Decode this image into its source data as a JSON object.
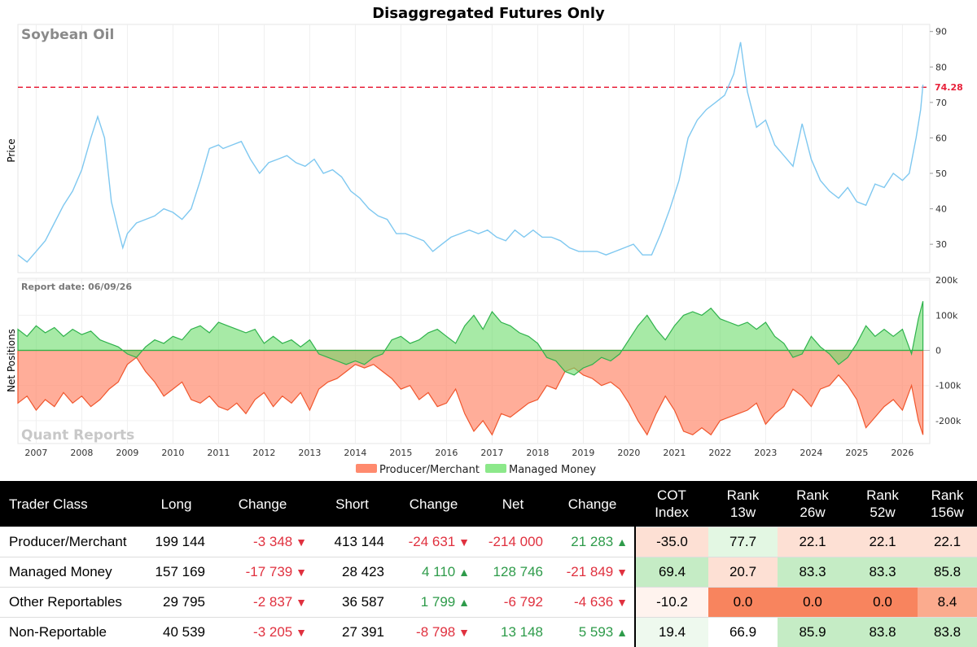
{
  "chart_data": [
    {
      "type": "line",
      "title": "Disaggregated Futures Only",
      "subtitle": "Soybean Oil",
      "ylabel": "Price",
      "ylim": [
        22,
        92
      ],
      "yticks": [
        30,
        40,
        50,
        60,
        70,
        80,
        90
      ],
      "xlim": [
        2006.6,
        2026.6
      ],
      "reference_line": {
        "value": 74.28,
        "label": "74.28",
        "color": "#e8213a",
        "style": "dashed"
      },
      "series": [
        {
          "color": "#7fc8f0",
          "x": [
            2006.6,
            2006.8,
            2007.0,
            2007.2,
            2007.4,
            2007.6,
            2007.8,
            2008.0,
            2008.2,
            2008.35,
            2008.5,
            2008.65,
            2008.8,
            2008.9,
            2009.0,
            2009.2,
            2009.4,
            2009.6,
            2009.8,
            2010.0,
            2010.2,
            2010.4,
            2010.6,
            2010.8,
            2011.0,
            2011.1,
            2011.3,
            2011.5,
            2011.7,
            2011.9,
            2012.1,
            2012.3,
            2012.5,
            2012.7,
            2012.9,
            2013.1,
            2013.3,
            2013.5,
            2013.7,
            2013.9,
            2014.1,
            2014.3,
            2014.5,
            2014.7,
            2014.9,
            2015.1,
            2015.3,
            2015.5,
            2015.7,
            2015.9,
            2016.1,
            2016.3,
            2016.5,
            2016.7,
            2016.9,
            2017.1,
            2017.3,
            2017.5,
            2017.7,
            2017.9,
            2018.1,
            2018.3,
            2018.5,
            2018.7,
            2018.9,
            2019.1,
            2019.3,
            2019.5,
            2019.7,
            2019.9,
            2020.1,
            2020.3,
            2020.5,
            2020.7,
            2020.9,
            2021.1,
            2021.3,
            2021.5,
            2021.7,
            2021.9,
            2022.1,
            2022.3,
            2022.45,
            2022.6,
            2022.8,
            2023.0,
            2023.2,
            2023.4,
            2023.6,
            2023.8,
            2024.0,
            2024.2,
            2024.4,
            2024.6,
            2024.8,
            2025.0,
            2025.2,
            2025.4,
            2025.6,
            2025.8,
            2026.0,
            2026.15,
            2026.3,
            2026.4,
            2026.45
          ],
          "values": [
            27,
            25,
            28,
            31,
            36,
            41,
            45,
            51,
            60,
            66,
            60,
            42,
            34,
            29,
            33,
            36,
            37,
            38,
            40,
            39,
            37,
            40,
            48,
            57,
            58,
            57,
            58,
            59,
            54,
            50,
            53,
            54,
            55,
            53,
            52,
            54,
            50,
            51,
            49,
            45,
            43,
            40,
            38,
            37,
            33,
            33,
            32,
            31,
            28,
            30,
            32,
            33,
            34,
            33,
            34,
            32,
            31,
            34,
            32,
            34,
            32,
            32,
            31,
            29,
            28,
            28,
            28,
            27,
            28,
            29,
            30,
            27,
            27,
            33,
            40,
            48,
            60,
            65,
            68,
            70,
            72,
            78,
            87,
            73,
            63,
            65,
            58,
            55,
            52,
            64,
            54,
            48,
            45,
            43,
            46,
            42,
            41,
            47,
            46,
            50,
            48,
            50,
            60,
            68,
            75
          ]
        }
      ]
    },
    {
      "type": "area",
      "ylabel": "Net Positions",
      "ylim": [
        -265000,
        205000
      ],
      "yticks": [
        -200000,
        -100000,
        0,
        100000,
        200000
      ],
      "ytick_labels": [
        "-200k",
        "-100k",
        "0",
        "100k",
        "200k"
      ],
      "xlim": [
        2006.6,
        2026.6
      ],
      "annotation": "Report date: 06/09/26",
      "watermark": "Quant Reports",
      "x_tick_labels": [
        "2007",
        "2008",
        "2009",
        "2010",
        "2011",
        "2012",
        "2013",
        "2014",
        "2015",
        "2016",
        "2017",
        "2018",
        "2019",
        "2020",
        "2021",
        "2022",
        "2023",
        "2024",
        "2025",
        "2026"
      ],
      "x_tick_values": [
        2007,
        2008,
        2009,
        2010,
        2011,
        2012,
        2013,
        2014,
        2015,
        2016,
        2017,
        2018,
        2019,
        2020,
        2021,
        2022,
        2023,
        2024,
        2025,
        2026
      ],
      "legend_position": "bottom",
      "series": [
        {
          "name": "Producer/Merchant",
          "color": "#ff8a6e",
          "line_color": "#f0562d",
          "x": [
            2006.6,
            2006.8,
            2007.0,
            2007.2,
            2007.4,
            2007.6,
            2007.8,
            2008.0,
            2008.2,
            2008.4,
            2008.6,
            2008.8,
            2009.0,
            2009.2,
            2009.4,
            2009.6,
            2009.8,
            2010.0,
            2010.2,
            2010.4,
            2010.6,
            2010.8,
            2011.0,
            2011.2,
            2011.4,
            2011.6,
            2011.8,
            2012.0,
            2012.2,
            2012.4,
            2012.6,
            2012.8,
            2013.0,
            2013.2,
            2013.4,
            2013.6,
            2013.8,
            2014.0,
            2014.2,
            2014.4,
            2014.6,
            2014.8,
            2015.0,
            2015.2,
            2015.4,
            2015.6,
            2015.8,
            2016.0,
            2016.2,
            2016.4,
            2016.6,
            2016.8,
            2017.0,
            2017.2,
            2017.4,
            2017.6,
            2017.8,
            2018.0,
            2018.2,
            2018.4,
            2018.6,
            2018.8,
            2019.0,
            2019.2,
            2019.4,
            2019.6,
            2019.8,
            2020.0,
            2020.2,
            2020.4,
            2020.6,
            2020.8,
            2021.0,
            2021.2,
            2021.4,
            2021.6,
            2021.8,
            2022.0,
            2022.2,
            2022.4,
            2022.6,
            2022.8,
            2023.0,
            2023.2,
            2023.4,
            2023.6,
            2023.8,
            2024.0,
            2024.2,
            2024.4,
            2024.6,
            2024.8,
            2025.0,
            2025.2,
            2025.4,
            2025.6,
            2025.8,
            2026.0,
            2026.2,
            2026.35,
            2026.45
          ],
          "values": [
            -150000,
            -130000,
            -170000,
            -140000,
            -160000,
            -120000,
            -150000,
            -130000,
            -160000,
            -140000,
            -110000,
            -90000,
            -40000,
            -20000,
            -60000,
            -90000,
            -130000,
            -110000,
            -90000,
            -140000,
            -150000,
            -130000,
            -160000,
            -170000,
            -150000,
            -180000,
            -140000,
            -120000,
            -160000,
            -130000,
            -150000,
            -120000,
            -170000,
            -110000,
            -90000,
            -80000,
            -60000,
            -40000,
            -50000,
            -40000,
            -60000,
            -80000,
            -110000,
            -100000,
            -140000,
            -120000,
            -160000,
            -150000,
            -110000,
            -180000,
            -230000,
            -200000,
            -240000,
            -180000,
            -190000,
            -170000,
            -150000,
            -140000,
            -100000,
            -110000,
            -60000,
            -50000,
            -70000,
            -80000,
            -100000,
            -90000,
            -110000,
            -150000,
            -200000,
            -240000,
            -180000,
            -130000,
            -170000,
            -230000,
            -240000,
            -220000,
            -240000,
            -200000,
            -190000,
            -180000,
            -170000,
            -150000,
            -210000,
            -180000,
            -160000,
            -110000,
            -130000,
            -160000,
            -110000,
            -100000,
            -70000,
            -100000,
            -140000,
            -220000,
            -190000,
            -160000,
            -140000,
            -170000,
            -100000,
            -200000,
            -240000
          ]
        },
        {
          "name": "Managed Money",
          "color": "#8ce88a",
          "line_color": "#2fb24c",
          "x": [
            2006.6,
            2006.8,
            2007.0,
            2007.2,
            2007.4,
            2007.6,
            2007.8,
            2008.0,
            2008.2,
            2008.4,
            2008.6,
            2008.8,
            2009.0,
            2009.2,
            2009.4,
            2009.6,
            2009.8,
            2010.0,
            2010.2,
            2010.4,
            2010.6,
            2010.8,
            2011.0,
            2011.2,
            2011.4,
            2011.6,
            2011.8,
            2012.0,
            2012.2,
            2012.4,
            2012.6,
            2012.8,
            2013.0,
            2013.2,
            2013.4,
            2013.6,
            2013.8,
            2014.0,
            2014.2,
            2014.4,
            2014.6,
            2014.8,
            2015.0,
            2015.2,
            2015.4,
            2015.6,
            2015.8,
            2016.0,
            2016.2,
            2016.4,
            2016.6,
            2016.8,
            2017.0,
            2017.2,
            2017.4,
            2017.6,
            2017.8,
            2018.0,
            2018.2,
            2018.4,
            2018.6,
            2018.8,
            2019.0,
            2019.2,
            2019.4,
            2019.6,
            2019.8,
            2020.0,
            2020.2,
            2020.4,
            2020.6,
            2020.8,
            2021.0,
            2021.2,
            2021.4,
            2021.6,
            2021.8,
            2022.0,
            2022.2,
            2022.4,
            2022.6,
            2022.8,
            2023.0,
            2023.2,
            2023.4,
            2023.6,
            2023.8,
            2024.0,
            2024.2,
            2024.4,
            2024.6,
            2024.8,
            2025.0,
            2025.2,
            2025.4,
            2025.6,
            2025.8,
            2026.0,
            2026.2,
            2026.35,
            2026.45
          ],
          "values": [
            60000,
            40000,
            70000,
            50000,
            65000,
            40000,
            60000,
            45000,
            55000,
            30000,
            20000,
            10000,
            -10000,
            -20000,
            10000,
            30000,
            20000,
            40000,
            30000,
            60000,
            70000,
            50000,
            80000,
            70000,
            60000,
            50000,
            60000,
            20000,
            40000,
            20000,
            30000,
            10000,
            30000,
            -10000,
            -20000,
            -30000,
            -40000,
            -30000,
            -40000,
            -20000,
            -10000,
            30000,
            40000,
            20000,
            30000,
            50000,
            60000,
            40000,
            20000,
            70000,
            100000,
            60000,
            110000,
            80000,
            70000,
            50000,
            40000,
            20000,
            -20000,
            -30000,
            -60000,
            -70000,
            -50000,
            -40000,
            -20000,
            -30000,
            -10000,
            30000,
            70000,
            100000,
            60000,
            30000,
            70000,
            100000,
            110000,
            100000,
            120000,
            90000,
            80000,
            70000,
            80000,
            60000,
            80000,
            40000,
            20000,
            -20000,
            -10000,
            40000,
            10000,
            -10000,
            -40000,
            -20000,
            20000,
            70000,
            40000,
            60000,
            40000,
            60000,
            -10000,
            90000,
            140000
          ]
        }
      ]
    }
  ],
  "table": {
    "headers": {
      "trader_class": "Trader Class",
      "long": "Long",
      "long_change": "Change",
      "short": "Short",
      "short_change": "Change",
      "net": "Net",
      "net_change": "Change",
      "cot_index_1": "COT",
      "cot_index_2": "Index",
      "rank13_1": "Rank",
      "rank13_2": "13w",
      "rank26_1": "Rank",
      "rank26_2": "26w",
      "rank52_1": "Rank",
      "rank52_2": "52w",
      "rank156_1": "Rank",
      "rank156_2": "156w"
    },
    "rows": [
      {
        "name": "Producer/Merchant",
        "long": "199 144",
        "long_change": "-3 348",
        "long_dir": "down",
        "short": "413 144",
        "short_change": "-24 631",
        "short_dir": "down",
        "net": "-214 000",
        "net_sign": "neg",
        "net_change": "21 283",
        "net_dir": "up",
        "cot_index": "-35.0",
        "rank13": "77.7",
        "rank26": "22.1",
        "rank52": "22.1",
        "rank156": "22.1",
        "colors": {
          "cot_index": "#fde0d4",
          "rank13": "#e3f7e3",
          "rank26": "#fde0d4",
          "rank52": "#fde0d4",
          "rank156": "#fde0d4"
        }
      },
      {
        "name": "Managed Money",
        "long": "157 169",
        "long_change": "-17 739",
        "long_dir": "down",
        "short": "28 423",
        "short_change": "4 110",
        "short_dir": "up",
        "net": "128 746",
        "net_sign": "pos",
        "net_change": "-21 849",
        "net_dir": "down",
        "cot_index": "69.4",
        "rank13": "20.7",
        "rank26": "83.3",
        "rank52": "83.3",
        "rank156": "85.8",
        "colors": {
          "cot_index": "#c5ecc5",
          "rank13": "#fde0d4",
          "rank26": "#c5ecc5",
          "rank52": "#c5ecc5",
          "rank156": "#c5ecc5"
        }
      },
      {
        "name": "Other Reportables",
        "long": "29 795",
        "long_change": "-2 837",
        "long_dir": "down",
        "short": "36 587",
        "short_change": "1 799",
        "short_dir": "up",
        "net": "-6 792",
        "net_sign": "neg",
        "net_change": "-4 636",
        "net_dir": "down",
        "cot_index": "-10.2",
        "rank13": "0.0",
        "rank26": "0.0",
        "rank52": "0.0",
        "rank156": "8.4",
        "colors": {
          "cot_index": "#fff3ee",
          "rank13": "#f8845e",
          "rank26": "#f8845e",
          "rank52": "#f8845e",
          "rank156": "#fbab8e"
        }
      },
      {
        "name": "Non-Reportable",
        "long": "40 539",
        "long_change": "-3 205",
        "long_dir": "down",
        "short": "27 391",
        "short_change": "-8 798",
        "short_dir": "down",
        "net": "13 148",
        "net_sign": "pos",
        "net_change": "5 593",
        "net_dir": "up",
        "cot_index": "19.4",
        "rank13": "66.9",
        "rank26": "85.9",
        "rank52": "83.8",
        "rank156": "83.8",
        "colors": {
          "cot_index": "#eef9ee",
          "rank13": "#ffffff",
          "rank26": "#c5ecc5",
          "rank52": "#c5ecc5",
          "rank156": "#c5ecc5"
        }
      }
    ]
  }
}
